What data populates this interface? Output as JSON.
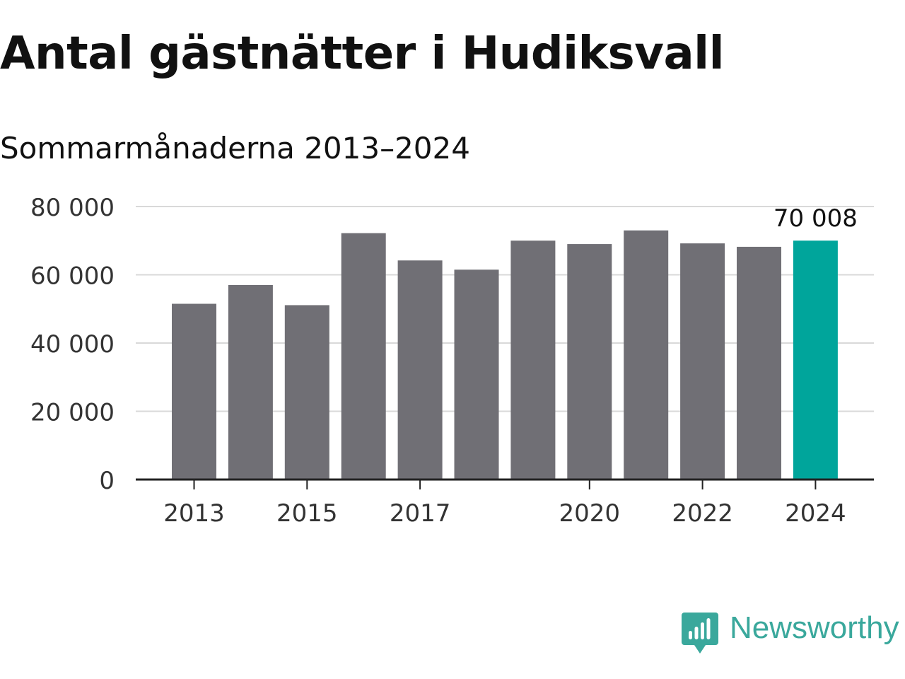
{
  "header": {
    "title": "Antal gästnätter i Hudiksvall",
    "subtitle": "Sommarmånaderna 2013–2024"
  },
  "colors": {
    "bar": "#706f75",
    "highlight": "#00a59b",
    "grid": "#d9d9d9",
    "axis": "#222222",
    "brand": "#3aa89c"
  },
  "chart_data": {
    "type": "bar",
    "categories": [
      "2013",
      "2014",
      "2015",
      "2016",
      "2017",
      "2018",
      "2019",
      "2020",
      "2021",
      "2022",
      "2023",
      "2024"
    ],
    "values": [
      51500,
      57000,
      51100,
      72200,
      64200,
      61500,
      70000,
      69000,
      73000,
      69200,
      68200,
      70008
    ],
    "highlight_index": 11,
    "highlight_label": "70 008",
    "x_tick_labels": [
      "2013",
      "2015",
      "2017",
      "2020",
      "2022",
      "2024"
    ],
    "y_tick_labels": [
      "0",
      "20 000",
      "40 000",
      "60 000",
      "80 000"
    ],
    "y_ticks": [
      0,
      20000,
      40000,
      60000,
      80000
    ],
    "ylim": [
      0,
      80000
    ],
    "grid": true,
    "legend": "none"
  },
  "brand": {
    "name": "Newsworthy",
    "icon": "newsworthy-logo-icon"
  }
}
